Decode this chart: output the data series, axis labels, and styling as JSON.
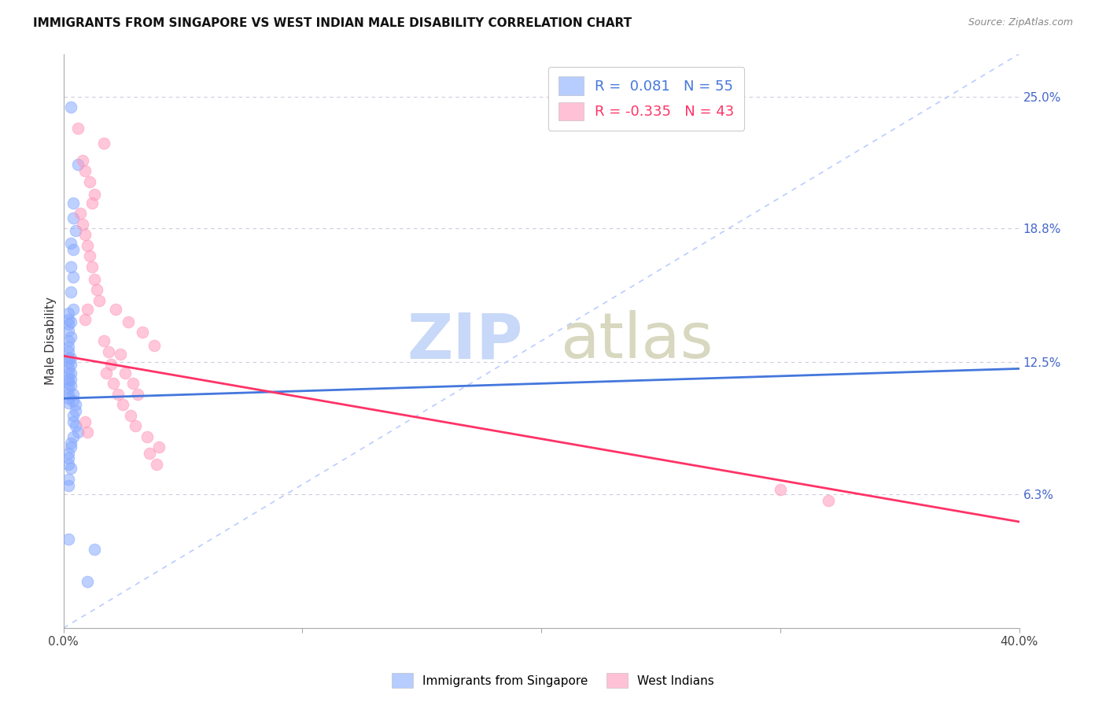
{
  "title": "IMMIGRANTS FROM SINGAPORE VS WEST INDIAN MALE DISABILITY CORRELATION CHART",
  "source": "Source: ZipAtlas.com",
  "ylabel": "Male Disability",
  "ytick_labels": [
    "6.3%",
    "12.5%",
    "18.8%",
    "25.0%"
  ],
  "ytick_values": [
    0.063,
    0.125,
    0.188,
    0.25
  ],
  "xlim": [
    0.0,
    0.4
  ],
  "ylim": [
    0.0,
    0.27
  ],
  "color_blue": "#88AAFF",
  "color_pink": "#FF99BB",
  "color_trendline_blue": "#4477DD",
  "color_trendline_pink": "#FF3366",
  "color_diagonal": "#BBCCFF",
  "color_grid": "#CCCCDD",
  "legend_label_blue": "Immigrants from Singapore",
  "legend_label_pink": "West Indians",
  "singapore_x": [
    0.003,
    0.006,
    0.004,
    0.004,
    0.005,
    0.003,
    0.004,
    0.003,
    0.004,
    0.003,
    0.002,
    0.002,
    0.002,
    0.002,
    0.003,
    0.002,
    0.002,
    0.002,
    0.002,
    0.002,
    0.002,
    0.002,
    0.002,
    0.002,
    0.002,
    0.002,
    0.002,
    0.002,
    0.003,
    0.004,
    0.003,
    0.003,
    0.003,
    0.003,
    0.003,
    0.004,
    0.004,
    0.005,
    0.005,
    0.004,
    0.004,
    0.005,
    0.006,
    0.004,
    0.003,
    0.003,
    0.002,
    0.002,
    0.002,
    0.003,
    0.002,
    0.013,
    0.01,
    0.002,
    0.002
  ],
  "singapore_y": [
    0.245,
    0.218,
    0.2,
    0.193,
    0.187,
    0.181,
    0.178,
    0.17,
    0.165,
    0.158,
    0.148,
    0.145,
    0.143,
    0.14,
    0.137,
    0.135,
    0.132,
    0.13,
    0.127,
    0.125,
    0.122,
    0.12,
    0.117,
    0.115,
    0.113,
    0.11,
    0.108,
    0.106,
    0.144,
    0.15,
    0.127,
    0.124,
    0.12,
    0.117,
    0.114,
    0.11,
    0.107,
    0.105,
    0.102,
    0.1,
    0.097,
    0.095,
    0.092,
    0.09,
    0.087,
    0.085,
    0.082,
    0.08,
    0.077,
    0.075,
    0.042,
    0.037,
    0.022,
    0.07,
    0.067
  ],
  "westindian_x": [
    0.006,
    0.017,
    0.008,
    0.009,
    0.011,
    0.013,
    0.012,
    0.007,
    0.008,
    0.009,
    0.01,
    0.011,
    0.012,
    0.013,
    0.014,
    0.015,
    0.01,
    0.009,
    0.022,
    0.027,
    0.033,
    0.038,
    0.024,
    0.02,
    0.018,
    0.021,
    0.023,
    0.025,
    0.028,
    0.03,
    0.035,
    0.04,
    0.017,
    0.019,
    0.026,
    0.029,
    0.031,
    0.036,
    0.039,
    0.3,
    0.32,
    0.009,
    0.01
  ],
  "westindian_y": [
    0.235,
    0.228,
    0.22,
    0.215,
    0.21,
    0.204,
    0.2,
    0.195,
    0.19,
    0.185,
    0.18,
    0.175,
    0.17,
    0.164,
    0.159,
    0.154,
    0.15,
    0.145,
    0.15,
    0.144,
    0.139,
    0.133,
    0.129,
    0.124,
    0.12,
    0.115,
    0.11,
    0.105,
    0.1,
    0.095,
    0.09,
    0.085,
    0.135,
    0.13,
    0.12,
    0.115,
    0.11,
    0.082,
    0.077,
    0.065,
    0.06,
    0.097,
    0.092
  ],
  "sg_trend_x": [
    0.0,
    0.4
  ],
  "sg_trend_y": [
    0.108,
    0.122
  ],
  "wi_trend_x": [
    0.0,
    0.4
  ],
  "wi_trend_y": [
    0.128,
    0.05
  ]
}
